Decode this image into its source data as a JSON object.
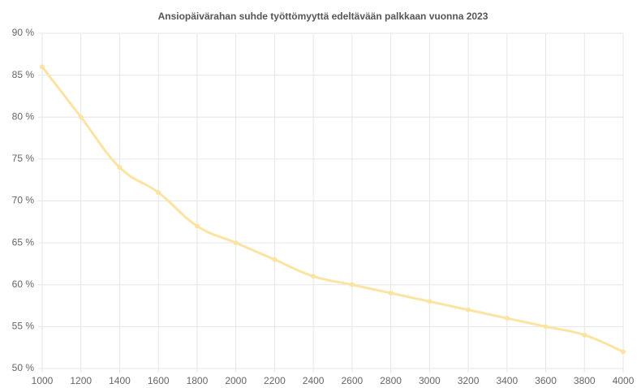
{
  "chart_data": {
    "type": "line",
    "title": "Ansiopäivärahan suhde työttömyyttä edeltävään palkkaan vuonna 2023",
    "x": [
      1000,
      1200,
      1400,
      1600,
      1800,
      2000,
      2200,
      2400,
      2600,
      2800,
      3000,
      3200,
      3400,
      3600,
      3800,
      4000
    ],
    "values": [
      86,
      80,
      74,
      71,
      67,
      65,
      63,
      61,
      60,
      59,
      58,
      57,
      56,
      55,
      54,
      52
    ],
    "color": "#fbe3a2",
    "xlim": [
      1000,
      4000
    ],
    "xticks": [
      1000,
      1200,
      1400,
      1600,
      1800,
      2000,
      2200,
      2400,
      2600,
      2800,
      3000,
      3200,
      3400,
      3600,
      3800,
      4000
    ],
    "ylim": [
      50,
      90
    ],
    "yticks": [
      {
        "value": 50,
        "label": "50 %"
      },
      {
        "value": 55,
        "label": "55 %"
      },
      {
        "value": 60,
        "label": "60 %"
      },
      {
        "value": 65,
        "label": "65 %"
      },
      {
        "value": 70,
        "label": "70 %"
      },
      {
        "value": 75,
        "label": "75 %"
      },
      {
        "value": 80,
        "label": "80 %"
      },
      {
        "value": 85,
        "label": "85 %"
      },
      {
        "value": 90,
        "label": "90 %"
      }
    ],
    "grid": true
  }
}
